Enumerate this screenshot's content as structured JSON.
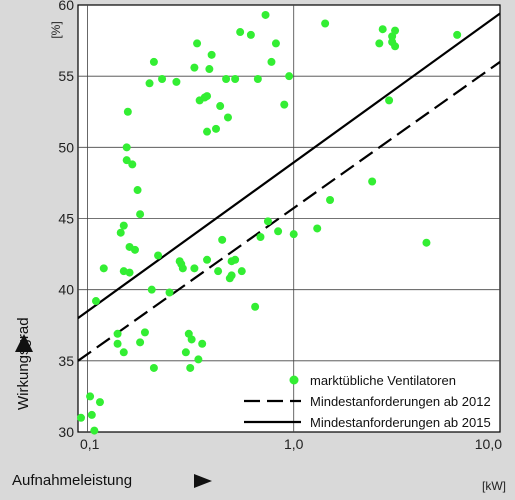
{
  "chart_data": {
    "type": "scatter",
    "xlabel": "Aufnahmeleistung",
    "xunit": "[kW]",
    "ylabel": "Wirkungsgrad",
    "yunit": "[%]",
    "x_scale": "log",
    "xlim": [
      0.09,
      10.0
    ],
    "ylim": [
      30,
      60
    ],
    "x_ticks": [
      {
        "value": 0.1,
        "label": "0,1"
      },
      {
        "value": 1.0,
        "label": "1,0"
      },
      {
        "value": 10.0,
        "label": "10,0"
      }
    ],
    "y_ticks": [
      30,
      35,
      40,
      45,
      50,
      55,
      60
    ],
    "grid": true,
    "legend_position": "bottom-right",
    "colors": {
      "points": "#33ee33",
      "lines": "#000000",
      "plot_bg": "#ffffff",
      "page_bg": "#d9d9d9"
    },
    "series": [
      {
        "name": "marktübliche Ventilatoren",
        "kind": "scatter",
        "points": [
          [
            0.09,
            31.0
          ],
          [
            0.105,
            31.2
          ],
          [
            0.103,
            32.5
          ],
          [
            0.108,
            30.1
          ],
          [
            0.115,
            32.1
          ],
          [
            0.11,
            39.2
          ],
          [
            0.12,
            41.5
          ],
          [
            0.14,
            36.9
          ],
          [
            0.14,
            36.2
          ],
          [
            0.145,
            44.0
          ],
          [
            0.15,
            41.3
          ],
          [
            0.15,
            44.5
          ],
          [
            0.15,
            35.6
          ],
          [
            0.155,
            49.1
          ],
          [
            0.155,
            50.0
          ],
          [
            0.157,
            52.5
          ],
          [
            0.16,
            41.2
          ],
          [
            0.16,
            43.0
          ],
          [
            0.165,
            48.8
          ],
          [
            0.17,
            42.8
          ],
          [
            0.175,
            47.0
          ],
          [
            0.18,
            45.3
          ],
          [
            0.18,
            36.3
          ],
          [
            0.19,
            37.0
          ],
          [
            0.2,
            54.5
          ],
          [
            0.205,
            40.0
          ],
          [
            0.21,
            56.0
          ],
          [
            0.21,
            34.5
          ],
          [
            0.22,
            42.4
          ],
          [
            0.23,
            54.8
          ],
          [
            0.25,
            39.8
          ],
          [
            0.27,
            54.6
          ],
          [
            0.28,
            42.0
          ],
          [
            0.285,
            41.8
          ],
          [
            0.29,
            41.5
          ],
          [
            0.3,
            35.6
          ],
          [
            0.31,
            36.9
          ],
          [
            0.315,
            34.5
          ],
          [
            0.32,
            36.5
          ],
          [
            0.33,
            55.6
          ],
          [
            0.33,
            41.5
          ],
          [
            0.34,
            57.3
          ],
          [
            0.345,
            35.1
          ],
          [
            0.35,
            53.3
          ],
          [
            0.36,
            36.2
          ],
          [
            0.37,
            53.5
          ],
          [
            0.38,
            53.6
          ],
          [
            0.38,
            51.1
          ],
          [
            0.38,
            42.1
          ],
          [
            0.39,
            55.5
          ],
          [
            0.4,
            56.5
          ],
          [
            0.42,
            51.3
          ],
          [
            0.43,
            41.3
          ],
          [
            0.44,
            52.9
          ],
          [
            0.45,
            43.5
          ],
          [
            0.47,
            54.8
          ],
          [
            0.48,
            52.1
          ],
          [
            0.49,
            40.8
          ],
          [
            0.5,
            41.0
          ],
          [
            0.5,
            42.0
          ],
          [
            0.52,
            54.8
          ],
          [
            0.52,
            42.1
          ],
          [
            0.55,
            58.1
          ],
          [
            0.56,
            41.3
          ],
          [
            0.62,
            57.9
          ],
          [
            0.65,
            38.8
          ],
          [
            0.67,
            54.8
          ],
          [
            0.69,
            43.7
          ],
          [
            0.73,
            59.3
          ],
          [
            0.75,
            44.8
          ],
          [
            0.78,
            56.0
          ],
          [
            0.82,
            57.3
          ],
          [
            0.84,
            44.1
          ],
          [
            0.9,
            53.0
          ],
          [
            0.95,
            55.0
          ],
          [
            1.0,
            43.9
          ],
          [
            1.3,
            44.3
          ],
          [
            1.42,
            58.7
          ],
          [
            1.5,
            46.3
          ],
          [
            2.4,
            47.6
          ],
          [
            2.6,
            57.3
          ],
          [
            2.7,
            58.3
          ],
          [
            3.0,
            57.4
          ],
          [
            3.0,
            57.8
          ],
          [
            3.1,
            58.2
          ],
          [
            3.1,
            57.1
          ],
          [
            2.9,
            53.3
          ],
          [
            4.4,
            43.3
          ],
          [
            6.2,
            57.9
          ]
        ]
      },
      {
        "name": "Mindestanforderungen ab 2012",
        "kind": "line",
        "dash": "dashed",
        "points": [
          [
            0.09,
            35.0
          ],
          [
            10.0,
            56.0
          ]
        ]
      },
      {
        "name": "Mindestanforderungen ab 2015",
        "kind": "line",
        "dash": "solid",
        "points": [
          [
            0.09,
            38.0
          ],
          [
            10.0,
            59.4
          ]
        ]
      }
    ]
  }
}
